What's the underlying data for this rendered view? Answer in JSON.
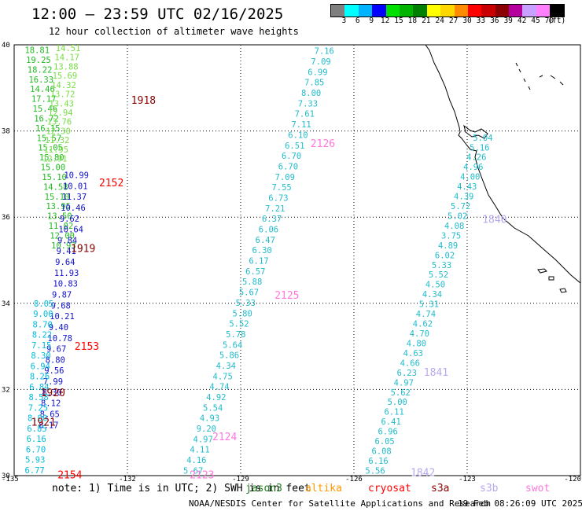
{
  "header": {
    "title": "12:00 – 23:59 UTC 02/16/2025",
    "subtitle": "12 hour collection of altimeter wave heights"
  },
  "colorbar": {
    "colors": [
      "#7f7f7f",
      "#00ffff",
      "#00b4ff",
      "#0000ff",
      "#00e000",
      "#00b400",
      "#008000",
      "#ffff00",
      "#ffd700",
      "#ff8c00",
      "#ff0000",
      "#c80000",
      "#8b0000",
      "#b4009c",
      "#c8a0ff",
      "#ff80ff",
      "#000000"
    ],
    "labels": [
      "3",
      "6",
      "9",
      "12",
      "15",
      "18",
      "21",
      "24",
      "27",
      "30",
      "33",
      "36",
      "39",
      "42",
      "45",
      "70",
      "(ft)"
    ]
  },
  "axes": {
    "lat_labels": [
      "40",
      "38",
      "36",
      "34",
      "32",
      "30"
    ],
    "lon_labels": [
      "-135",
      "-132",
      "-129",
      "-126",
      "-123",
      "-120"
    ]
  },
  "map_data": {
    "bounds": {
      "lon": [
        -135,
        -120
      ],
      "lat": [
        30,
        40
      ]
    },
    "gridlines": {
      "lons": [
        -132,
        -129,
        -126,
        -123
      ],
      "lats": [
        38,
        36,
        34,
        32
      ]
    },
    "tracks": [
      {
        "name": "tA",
        "color": "#22bb22",
        "values": [
          "18.81",
          "19.25",
          "18.22",
          "16.33",
          "14.46",
          "17.17",
          "15.46",
          "16.72",
          "16.15",
          "15.57",
          "15.05",
          "15.80",
          "15.00",
          "15.10",
          "14.58",
          "15.10",
          "13.95",
          "13.50",
          "11.02",
          "12.00",
          "10.93"
        ],
        "start": [
          -134.72,
          39.88
        ],
        "end": [
          -134.02,
          35.35
        ]
      },
      {
        "name": "tB",
        "color": "#77dd44",
        "values": [
          "14.51",
          "14.17",
          "13.88",
          "15.69",
          "14.32",
          "13.72",
          "13.43",
          "12.94",
          "13.76",
          "12.30",
          "11.32",
          "11.95",
          "12.91"
        ],
        "start": [
          -133.9,
          39.93
        ],
        "end": [
          -134.25,
          37.36
        ]
      },
      {
        "name": "tC",
        "color": "#1010cc",
        "values": [
          "10.99",
          "10.01",
          "11.37",
          "10.46",
          "9.62",
          "10.64",
          "9.84",
          "9.41",
          "9.64",
          "11.93",
          "10.83",
          "9.87",
          "9.68",
          "10.21",
          "9.40",
          "10.78",
          "9.67",
          "8.80",
          "9.56",
          "7.99",
          "8.30",
          "8.12",
          "8.65",
          "8.17"
        ],
        "start": [
          -133.68,
          36.98
        ],
        "end": [
          -134.35,
          31.18
        ]
      },
      {
        "name": "tD",
        "color": "#00bbdd",
        "values": [
          "8.05",
          "9.00",
          "8.70",
          "8.22",
          "7.15",
          "8.30",
          "6.94",
          "8.26",
          "6.84",
          "8.58",
          "7.25",
          "8.00",
          "6.85",
          "6.16",
          "6.70",
          "5.93",
          "6.77"
        ],
        "start": [
          -134.48,
          34.0
        ],
        "end": [
          -134.72,
          30.13
        ]
      },
      {
        "name": "t2126",
        "color": "#22bbcc",
        "values": [
          "7.16",
          "7.09",
          "6.99",
          "7.85",
          "8.00",
          "7.33",
          "7.61",
          "7.11",
          "6.10",
          "6.51",
          "6.70",
          "6.70",
          "7.09",
          "7.55",
          "6.73",
          "7.21",
          "6.37",
          "6.06",
          "6.47",
          "6.30",
          "6.17",
          "6.57",
          "5.88",
          "5.67",
          "5.33",
          "5.80",
          "5.52",
          "5.78",
          "5.64",
          "5.86",
          "4.34",
          "4.75",
          "4.74",
          "4.92",
          "5.54",
          "4.93",
          "9.20",
          "4.97",
          "4.11",
          "4.16",
          "5.67"
        ],
        "start": [
          -127.05,
          39.86
        ],
        "end": [
          -130.52,
          30.12
        ]
      },
      {
        "name": "t1840",
        "color": "#22bbcc",
        "values": [
          "5.04",
          "5.16",
          "4.26",
          "4.96",
          "4.00",
          "4.43",
          "4.39",
          "5.72",
          "5.02",
          "4.08",
          "3.75",
          "4.89",
          "6.02",
          "5.33",
          "5.52",
          "4.50",
          "4.34",
          "5.31",
          "4.74",
          "4.62",
          "4.70",
          "4.80",
          "4.63",
          "4.66",
          "6.23",
          "4.97",
          "5.62",
          "5.00",
          "6.11",
          "6.41",
          "6.96",
          "6.05",
          "6.08",
          "6.16",
          "5.56"
        ],
        "start": [
          -122.85,
          37.85
        ],
        "end": [
          -125.7,
          30.12
        ]
      }
    ],
    "pass_labels": [
      {
        "text": "1918",
        "color": "#8b0000",
        "lon": -131.9,
        "lat": 38.72
      },
      {
        "text": "2152",
        "color": "#ff0000",
        "lon": -132.75,
        "lat": 36.81
      },
      {
        "text": "1919",
        "color": "#8b0000",
        "lon": -133.5,
        "lat": 35.28
      },
      {
        "text": "2153",
        "color": "#ff0000",
        "lon": -133.4,
        "lat": 33.01
      },
      {
        "text": "1920",
        "color": "#8b0000",
        "lon": -134.3,
        "lat": 31.93
      },
      {
        "text": "1921",
        "color": "#8b0000",
        "lon": -134.55,
        "lat": 31.25
      },
      {
        "text": "2154",
        "color": "#ff0000",
        "lon": -133.85,
        "lat": 30.03
      },
      {
        "text": "2126",
        "color": "#ff77dd",
        "lon": -127.15,
        "lat": 37.72
      },
      {
        "text": "2125",
        "color": "#ff77dd",
        "lon": -128.1,
        "lat": 34.2
      },
      {
        "text": "2124",
        "color": "#ff77dd",
        "lon": -129.75,
        "lat": 30.91
      },
      {
        "text": "2123",
        "color": "#ff77dd",
        "lon": -130.35,
        "lat": 30.03
      },
      {
        "text": "1840",
        "color": "#b8a8ee",
        "lon": -122.6,
        "lat": 35.96
      },
      {
        "text": "1841",
        "color": "#b8a8ee",
        "lon": -124.15,
        "lat": 32.41
      },
      {
        "text": "1842",
        "color": "#b8a8ee",
        "lon": -124.5,
        "lat": 30.08
      }
    ]
  },
  "legend": {
    "note": "note: 1) Time is in UTC; 2) SWH is in feet",
    "satellites": [
      {
        "name": "jason3",
        "color": "#1f7a1f"
      },
      {
        "name": "altika",
        "color": "#ff9900"
      },
      {
        "name": "cryosat",
        "color": "#ff0000"
      },
      {
        "name": "s3a",
        "color": "#8b0000"
      },
      {
        "name": "s3b",
        "color": "#b8a8ee"
      },
      {
        "name": "swot",
        "color": "#ff77dd"
      }
    ]
  },
  "footer": {
    "credit": "NOAA/NESDIS Center for Satellite Applications and Research",
    "timestamp": "19 Feb 08:26:09 UTC 2025"
  }
}
